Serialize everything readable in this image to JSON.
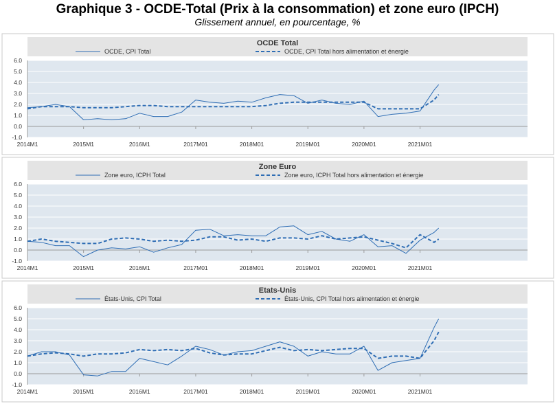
{
  "page": {
    "title": "Graphique 3 - OCDE-Total (Prix à la consommation) et zone euro (IPCH)",
    "subtitle": "Glissement annuel, en pourcentage, %"
  },
  "style": {
    "plot_background": "#dfe7ef",
    "header_background": "#e4e4e4",
    "line_color": "#2e6db4",
    "gridline_color": "#ffffff",
    "axis_color": "#9a9a9a"
  },
  "chart_data": [
    {
      "type": "line",
      "title": "OCDE Total",
      "x_tick_labels": [
        "2014M1",
        "2015M1",
        "2016M1",
        "2017M01",
        "2018M01",
        "2019M01",
        "2020M01",
        "2021M01"
      ],
      "x_tick_years": [
        2014,
        2015,
        2016,
        2017,
        2018,
        2019,
        2020,
        2021
      ],
      "ylim": [
        -1,
        6
      ],
      "y_ticks": [
        "6.0",
        "5.0",
        "4.0",
        "3.0",
        "2.0",
        "1.0",
        "0.0",
        "-1.0"
      ],
      "x_range": [
        "2014-01",
        "2022-12"
      ],
      "grid": "horizontal",
      "legend_position": "top",
      "series": [
        {
          "name": "OCDE, CPI Total",
          "style": "solid",
          "x": [
            "2014-01",
            "2014-04",
            "2014-07",
            "2014-10",
            "2015-01",
            "2015-04",
            "2015-07",
            "2015-10",
            "2016-01",
            "2016-04",
            "2016-07",
            "2016-10",
            "2017-01",
            "2017-04",
            "2017-07",
            "2017-10",
            "2018-01",
            "2018-04",
            "2018-07",
            "2018-10",
            "2019-01",
            "2019-04",
            "2019-07",
            "2019-10",
            "2020-01",
            "2020-04",
            "2020-07",
            "2020-10",
            "2021-01",
            "2021-04",
            "2021-05"
          ],
          "values": [
            1.7,
            1.8,
            2.0,
            1.8,
            0.6,
            0.7,
            0.6,
            0.7,
            1.2,
            0.9,
            0.9,
            1.3,
            2.4,
            2.2,
            2.1,
            2.3,
            2.2,
            2.6,
            2.9,
            2.8,
            2.1,
            2.4,
            2.1,
            2.0,
            2.3,
            0.9,
            1.1,
            1.2,
            1.4,
            3.3,
            3.8
          ]
        },
        {
          "name": "OCDE, CPI Total hors alimentation et énergie",
          "style": "dashed",
          "x": [
            "2014-01",
            "2014-04",
            "2014-07",
            "2014-10",
            "2015-01",
            "2015-04",
            "2015-07",
            "2015-10",
            "2016-01",
            "2016-04",
            "2016-07",
            "2016-10",
            "2017-01",
            "2017-04",
            "2017-07",
            "2017-10",
            "2018-01",
            "2018-04",
            "2018-07",
            "2018-10",
            "2019-01",
            "2019-04",
            "2019-07",
            "2019-10",
            "2020-01",
            "2020-04",
            "2020-07",
            "2020-10",
            "2021-01",
            "2021-04",
            "2021-05"
          ],
          "values": [
            1.6,
            1.8,
            1.8,
            1.8,
            1.7,
            1.7,
            1.7,
            1.8,
            1.9,
            1.9,
            1.8,
            1.8,
            1.8,
            1.8,
            1.8,
            1.8,
            1.8,
            1.9,
            2.1,
            2.2,
            2.2,
            2.2,
            2.2,
            2.2,
            2.2,
            1.6,
            1.6,
            1.6,
            1.6,
            2.4,
            2.9
          ]
        }
      ]
    },
    {
      "type": "line",
      "title": "Zone Euro",
      "x_tick_labels": [
        "2014M1",
        "2015M1",
        "2016M1",
        "2017M01",
        "2018M01",
        "2019M01",
        "2020M01",
        "2021M01"
      ],
      "x_tick_years": [
        2014,
        2015,
        2016,
        2017,
        2018,
        2019,
        2020,
        2021
      ],
      "ylim": [
        -1,
        6
      ],
      "y_ticks": [
        "6.0",
        "5.0",
        "4.0",
        "3.0",
        "2.0",
        "1.0",
        "0.0",
        "-1.0"
      ],
      "x_range": [
        "2014-01",
        "2022-12"
      ],
      "grid": "horizontal",
      "legend_position": "top",
      "series": [
        {
          "name": "Zone euro, ICPH Total",
          "style": "solid",
          "x": [
            "2014-01",
            "2014-04",
            "2014-07",
            "2014-10",
            "2015-01",
            "2015-04",
            "2015-07",
            "2015-10",
            "2016-01",
            "2016-04",
            "2016-07",
            "2016-10",
            "2017-01",
            "2017-04",
            "2017-07",
            "2017-10",
            "2018-01",
            "2018-04",
            "2018-07",
            "2018-10",
            "2019-01",
            "2019-04",
            "2019-07",
            "2019-10",
            "2020-01",
            "2020-04",
            "2020-07",
            "2020-10",
            "2021-01",
            "2021-04",
            "2021-05"
          ],
          "values": [
            0.8,
            0.7,
            0.4,
            0.4,
            -0.6,
            0.0,
            0.2,
            0.1,
            0.3,
            -0.2,
            0.2,
            0.5,
            1.8,
            1.9,
            1.3,
            1.4,
            1.3,
            1.3,
            2.1,
            2.2,
            1.4,
            1.7,
            1.0,
            0.8,
            1.4,
            0.3,
            0.4,
            -0.3,
            0.9,
            1.6,
            2.0
          ]
        },
        {
          "name": "Zone euro, ICPH Total hors alimentation et énergie",
          "style": "dashed",
          "x": [
            "2014-01",
            "2014-04",
            "2014-07",
            "2014-10",
            "2015-01",
            "2015-04",
            "2015-07",
            "2015-10",
            "2016-01",
            "2016-04",
            "2016-07",
            "2016-10",
            "2017-01",
            "2017-04",
            "2017-07",
            "2017-10",
            "2018-01",
            "2018-04",
            "2018-07",
            "2018-10",
            "2019-01",
            "2019-04",
            "2019-07",
            "2019-10",
            "2020-01",
            "2020-04",
            "2020-07",
            "2020-10",
            "2021-01",
            "2021-04",
            "2021-05"
          ],
          "values": [
            0.8,
            1.0,
            0.8,
            0.7,
            0.6,
            0.6,
            1.0,
            1.1,
            1.0,
            0.8,
            0.9,
            0.8,
            0.9,
            1.2,
            1.2,
            0.9,
            1.0,
            0.8,
            1.1,
            1.1,
            1.0,
            1.3,
            1.0,
            1.1,
            1.2,
            0.9,
            0.6,
            0.2,
            1.4,
            0.7,
            1.0
          ]
        }
      ]
    },
    {
      "type": "line",
      "title": "Etats-Unis",
      "x_tick_labels": [
        "2014M1",
        "2015M1",
        "2016M1",
        "2017M01",
        "2018M01",
        "2019M01",
        "2020M01",
        "2021M01"
      ],
      "x_tick_years": [
        2014,
        2015,
        2016,
        2017,
        2018,
        2019,
        2020,
        2021
      ],
      "ylim": [
        -1,
        6
      ],
      "y_ticks": [
        "6.0",
        "5.0",
        "4.0",
        "3.0",
        "2.0",
        "1.0",
        "0.0",
        "-1.0"
      ],
      "x_range": [
        "2014-01",
        "2022-12"
      ],
      "grid": "horizontal",
      "legend_position": "top",
      "series": [
        {
          "name": "États-Unis, CPI Total",
          "style": "solid",
          "x": [
            "2014-01",
            "2014-04",
            "2014-07",
            "2014-10",
            "2015-01",
            "2015-04",
            "2015-07",
            "2015-10",
            "2016-01",
            "2016-04",
            "2016-07",
            "2016-10",
            "2017-01",
            "2017-04",
            "2017-07",
            "2017-10",
            "2018-01",
            "2018-04",
            "2018-07",
            "2018-10",
            "2019-01",
            "2019-04",
            "2019-07",
            "2019-10",
            "2020-01",
            "2020-04",
            "2020-07",
            "2020-10",
            "2021-01",
            "2021-04",
            "2021-05"
          ],
          "values": [
            1.6,
            2.0,
            2.0,
            1.7,
            -0.1,
            -0.2,
            0.2,
            0.2,
            1.4,
            1.1,
            0.8,
            1.6,
            2.5,
            2.2,
            1.7,
            2.0,
            2.1,
            2.5,
            2.9,
            2.5,
            1.6,
            2.0,
            1.8,
            1.8,
            2.5,
            0.3,
            1.0,
            1.2,
            1.4,
            4.2,
            5.0
          ]
        },
        {
          "name": "États-Unis, CPI Total hors alimentation et énergie",
          "style": "dashed",
          "x": [
            "2014-01",
            "2014-04",
            "2014-07",
            "2014-10",
            "2015-01",
            "2015-04",
            "2015-07",
            "2015-10",
            "2016-01",
            "2016-04",
            "2016-07",
            "2016-10",
            "2017-01",
            "2017-04",
            "2017-07",
            "2017-10",
            "2018-01",
            "2018-04",
            "2018-07",
            "2018-10",
            "2019-01",
            "2019-04",
            "2019-07",
            "2019-10",
            "2020-01",
            "2020-04",
            "2020-07",
            "2020-10",
            "2021-01",
            "2021-04",
            "2021-05"
          ],
          "values": [
            1.6,
            1.8,
            1.9,
            1.8,
            1.6,
            1.8,
            1.8,
            1.9,
            2.2,
            2.1,
            2.2,
            2.1,
            2.3,
            1.9,
            1.7,
            1.8,
            1.8,
            2.1,
            2.4,
            2.1,
            2.2,
            2.1,
            2.2,
            2.3,
            2.3,
            1.4,
            1.6,
            1.6,
            1.4,
            3.0,
            3.8
          ]
        }
      ]
    }
  ]
}
